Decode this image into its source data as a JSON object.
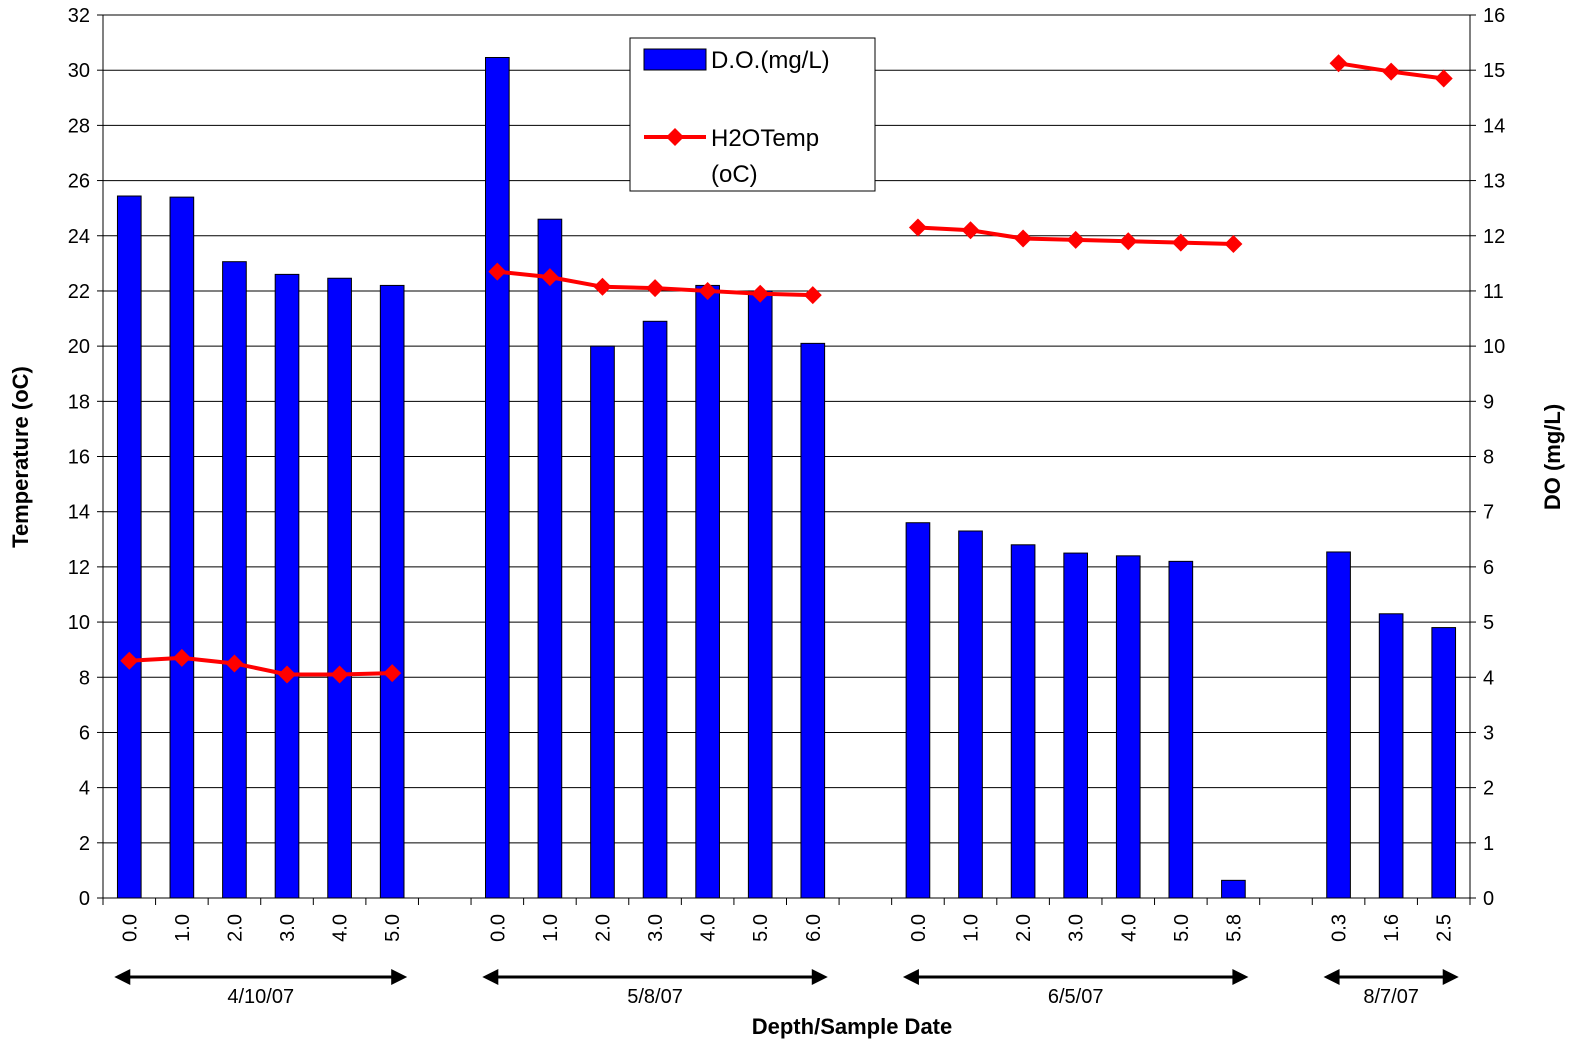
{
  "chart_data": {
    "type": "bar",
    "title": "",
    "xlabel": "Depth/Sample Date",
    "ylabel_left": "Temperature (oC)",
    "ylabel_right": "DO (mg/L)",
    "ylim_left": [
      0,
      32
    ],
    "ylim_right": [
      0,
      16
    ],
    "yticks_left": [
      0,
      2,
      4,
      6,
      8,
      10,
      12,
      14,
      16,
      18,
      20,
      22,
      24,
      26,
      28,
      30,
      32
    ],
    "yticks_right": [
      0,
      1,
      2,
      3,
      4,
      5,
      6,
      7,
      8,
      9,
      10,
      11,
      12,
      13,
      14,
      15,
      16
    ],
    "grid": true,
    "legend_position": "top-center",
    "groups": [
      {
        "date": "4/10/07",
        "depths": [
          "0.0",
          "1.0",
          "2.0",
          "3.0",
          "4.0",
          "5.0"
        ],
        "do": [
          12.72,
          12.7,
          11.53,
          11.3,
          11.23,
          11.1
        ],
        "temp": [
          8.6,
          8.7,
          8.5,
          8.1,
          8.1,
          8.15
        ]
      },
      {
        "date": "5/8/07",
        "depths": [
          "0.0",
          "1.0",
          "2.0",
          "3.0",
          "4.0",
          "5.0",
          "6.0"
        ],
        "do": [
          15.23,
          12.3,
          10.0,
          10.45,
          11.1,
          11.0,
          10.05
        ],
        "temp": [
          22.7,
          22.5,
          22.15,
          22.1,
          22.0,
          21.9,
          21.85
        ]
      },
      {
        "date": "6/5/07",
        "depths": [
          "0.0",
          "1.0",
          "2.0",
          "3.0",
          "4.0",
          "5.0",
          "5.8"
        ],
        "do": [
          6.8,
          6.65,
          6.4,
          6.25,
          6.2,
          6.1,
          0.32
        ],
        "temp": [
          24.3,
          24.2,
          23.9,
          23.85,
          23.8,
          23.75,
          23.7
        ]
      },
      {
        "date": "8/7/07",
        "depths": [
          "0.3",
          "1.6",
          "2.5"
        ],
        "do": [
          6.27,
          5.15,
          4.9
        ],
        "temp": [
          30.25,
          29.95,
          29.7
        ]
      }
    ],
    "series": [
      {
        "name": "D.O.(mg/L)",
        "kind": "bar",
        "axis": "right",
        "color": "#0000FF"
      },
      {
        "name": "H2OTemp (oC)",
        "kind": "line",
        "axis": "left",
        "color": "#FF0000"
      }
    ]
  },
  "legend": {
    "do_label": "D.O.(mg/L)",
    "temp_label_line1": "H2OTemp",
    "temp_label_line2": "(oC)"
  },
  "colors": {
    "bar": "#0000FF",
    "line": "#FF0000",
    "grid": "#000000"
  }
}
